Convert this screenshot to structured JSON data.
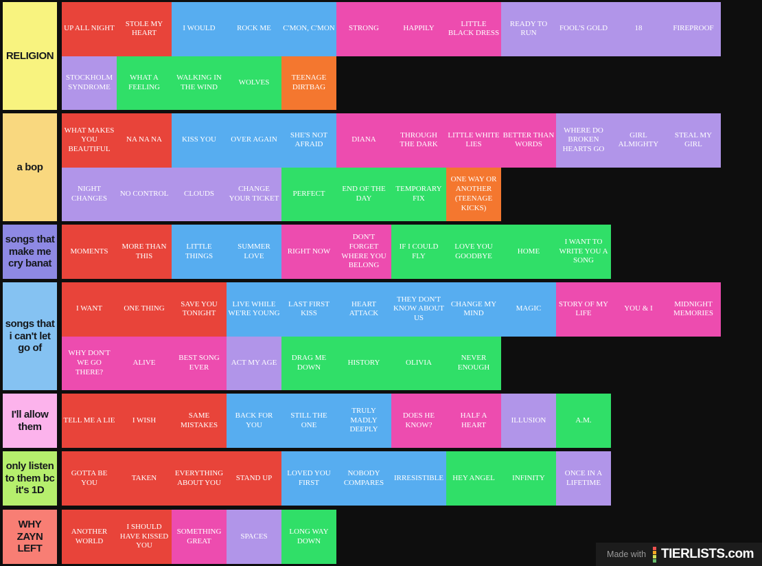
{
  "page": {
    "background": "#0e0e0e"
  },
  "palette": {
    "red": "#E8443A",
    "blue": "#57ADF0",
    "pink": "#ED4CAF",
    "purple": "#B195E9",
    "green": "#30DF68",
    "orange": "#F4772F"
  },
  "tiers": [
    {
      "label": "RELIGION",
      "label_color": "#F8F37F",
      "rows": [
        [
          {
            "label": "UP ALL NIGHT",
            "color": "red"
          },
          {
            "label": "STOLE MY HEART",
            "color": "red"
          },
          {
            "label": "I WOULD",
            "color": "blue"
          },
          {
            "label": "ROCK ME",
            "color": "blue"
          },
          {
            "label": "C'MON, C'MON",
            "color": "blue"
          },
          {
            "label": "STRONG",
            "color": "pink"
          },
          {
            "label": "HAPPILY",
            "color": "pink"
          },
          {
            "label": "LITTLE BLACK DRESS",
            "color": "pink"
          },
          {
            "label": "READY TO RUN",
            "color": "purple"
          },
          {
            "label": "FOOL'S GOLD",
            "color": "purple"
          },
          {
            "label": "18",
            "color": "purple"
          },
          {
            "label": "FIREPROOF",
            "color": "purple"
          }
        ],
        [
          {
            "label": "STOCKHOLM SYNDROME",
            "color": "purple"
          },
          {
            "label": "WHAT A FEELING",
            "color": "green"
          },
          {
            "label": "WALKING IN THE WIND",
            "color": "green"
          },
          {
            "label": "WOLVES",
            "color": "green"
          },
          {
            "label": "TEENAGE DIRTBAG",
            "color": "orange"
          }
        ]
      ]
    },
    {
      "label": "a bop",
      "label_color": "#F9D87F",
      "rows": [
        [
          {
            "label": "WHAT MAKES YOU BEAUTIFUL",
            "color": "red"
          },
          {
            "label": "NA NA NA",
            "color": "red"
          },
          {
            "label": "KISS YOU",
            "color": "blue"
          },
          {
            "label": "OVER AGAIN",
            "color": "blue"
          },
          {
            "label": "SHE'S NOT AFRAID",
            "color": "blue"
          },
          {
            "label": "DIANA",
            "color": "pink"
          },
          {
            "label": "THROUGH THE DARK",
            "color": "pink"
          },
          {
            "label": "LITTLE WHITE LIES",
            "color": "pink"
          },
          {
            "label": "BETTER THAN WORDS",
            "color": "pink"
          },
          {
            "label": "WHERE DO BROKEN HEARTS GO",
            "color": "purple"
          },
          {
            "label": "GIRL ALMIGHTY",
            "color": "purple"
          },
          {
            "label": "STEAL MY GIRL",
            "color": "purple"
          }
        ],
        [
          {
            "label": "NIGHT CHANGES",
            "color": "purple"
          },
          {
            "label": "NO CONTROL",
            "color": "purple"
          },
          {
            "label": "CLOUDS",
            "color": "purple"
          },
          {
            "label": "CHANGE YOUR TICKET",
            "color": "purple"
          },
          {
            "label": "PERFECT",
            "color": "green"
          },
          {
            "label": "END OF THE DAY",
            "color": "green"
          },
          {
            "label": "TEMPORARY FIX",
            "color": "green"
          },
          {
            "label": "ONE WAY OR ANOTHER (TEENAGE KICKS)",
            "color": "orange"
          }
        ]
      ]
    },
    {
      "label": "songs that make me cry banat",
      "label_color": "#8E89E4",
      "rows": [
        [
          {
            "label": "MOMENTS",
            "color": "red"
          },
          {
            "label": "MORE THAN THIS",
            "color": "red"
          },
          {
            "label": "LITTLE THINGS",
            "color": "blue"
          },
          {
            "label": "SUMMER LOVE",
            "color": "blue"
          },
          {
            "label": "RIGHT NOW",
            "color": "pink"
          },
          {
            "label": "DON'T FORGET WHERE YOU BELONG",
            "color": "pink"
          },
          {
            "label": "IF I COULD FLY",
            "color": "green"
          },
          {
            "label": "LOVE YOU GOODBYE",
            "color": "green"
          },
          {
            "label": "HOME",
            "color": "green"
          },
          {
            "label": "I WANT TO WRITE YOU A SONG",
            "color": "green"
          }
        ]
      ]
    },
    {
      "label": "songs that i can't let go of",
      "label_color": "#85C2F2",
      "rows": [
        [
          {
            "label": "I WANT",
            "color": "red"
          },
          {
            "label": "ONE THING",
            "color": "red"
          },
          {
            "label": "SAVE YOU TONIGHT",
            "color": "red"
          },
          {
            "label": "LIVE WHILE WE'RE YOUNG",
            "color": "blue"
          },
          {
            "label": "LAST FIRST KISS",
            "color": "blue"
          },
          {
            "label": "HEART ATTACK",
            "color": "blue"
          },
          {
            "label": "THEY DON'T KNOW ABOUT US",
            "color": "blue"
          },
          {
            "label": "CHANGE MY MIND",
            "color": "blue"
          },
          {
            "label": "MAGIC",
            "color": "blue"
          },
          {
            "label": "STORY OF MY LIFE",
            "color": "pink"
          },
          {
            "label": "YOU & I",
            "color": "pink"
          },
          {
            "label": "MIDNIGHT MEMORIES",
            "color": "pink"
          }
        ],
        [
          {
            "label": "WHY DON'T WE GO THERE?",
            "color": "pink"
          },
          {
            "label": "ALIVE",
            "color": "pink"
          },
          {
            "label": "BEST SONG EVER",
            "color": "pink"
          },
          {
            "label": "ACT MY AGE",
            "color": "purple"
          },
          {
            "label": "DRAG ME DOWN",
            "color": "green"
          },
          {
            "label": "HISTORY",
            "color": "green"
          },
          {
            "label": "OLIVIA",
            "color": "green"
          },
          {
            "label": "NEVER ENOUGH",
            "color": "green"
          }
        ]
      ]
    },
    {
      "label": "I'll allow them",
      "label_color": "#FCB3EC",
      "rows": [
        [
          {
            "label": "TELL ME A LIE",
            "color": "red"
          },
          {
            "label": "I WISH",
            "color": "red"
          },
          {
            "label": "SAME MISTAKES",
            "color": "red"
          },
          {
            "label": "BACK FOR YOU",
            "color": "blue"
          },
          {
            "label": "STILL THE ONE",
            "color": "blue"
          },
          {
            "label": "TRULY MADLY DEEPLY",
            "color": "blue"
          },
          {
            "label": "DOES HE KNOW?",
            "color": "pink"
          },
          {
            "label": "HALF A HEART",
            "color": "pink"
          },
          {
            "label": "ILLUSION",
            "color": "purple"
          },
          {
            "label": "A.M.",
            "color": "green"
          }
        ]
      ]
    },
    {
      "label": "only listen to them bc it's 1D",
      "label_color": "#B6EF6D",
      "rows": [
        [
          {
            "label": "GOTTA BE YOU",
            "color": "red"
          },
          {
            "label": "TAKEN",
            "color": "red"
          },
          {
            "label": "EVERYTHING ABOUT YOU",
            "color": "red"
          },
          {
            "label": "STAND UP",
            "color": "red"
          },
          {
            "label": "LOVED YOU FIRST",
            "color": "blue"
          },
          {
            "label": "NOBODY COMPARES",
            "color": "blue"
          },
          {
            "label": "IRRESISTIBLE",
            "color": "blue"
          },
          {
            "label": "HEY ANGEL",
            "color": "green"
          },
          {
            "label": "INFINITY",
            "color": "green"
          },
          {
            "label": "ONCE IN A LIFETIME",
            "color": "purple"
          }
        ]
      ]
    },
    {
      "label": "WHY ZAYN LEFT",
      "label_color": "#F87E74",
      "rows": [
        [
          {
            "label": "ANOTHER WORLD",
            "color": "red"
          },
          {
            "label": "I SHOULD HAVE KISSED YOU",
            "color": "red"
          },
          {
            "label": "SOMETHING GREAT",
            "color": "pink"
          },
          {
            "label": "SPACES",
            "color": "purple"
          },
          {
            "label": "LONG WAY DOWN",
            "color": "green"
          }
        ]
      ]
    }
  ],
  "footer": {
    "made_with": "Made with",
    "brand": "TIERLISTS.com",
    "icon_colors": [
      "#EF5350",
      "#F5A623",
      "#D4E157",
      "#66BB6A"
    ]
  }
}
